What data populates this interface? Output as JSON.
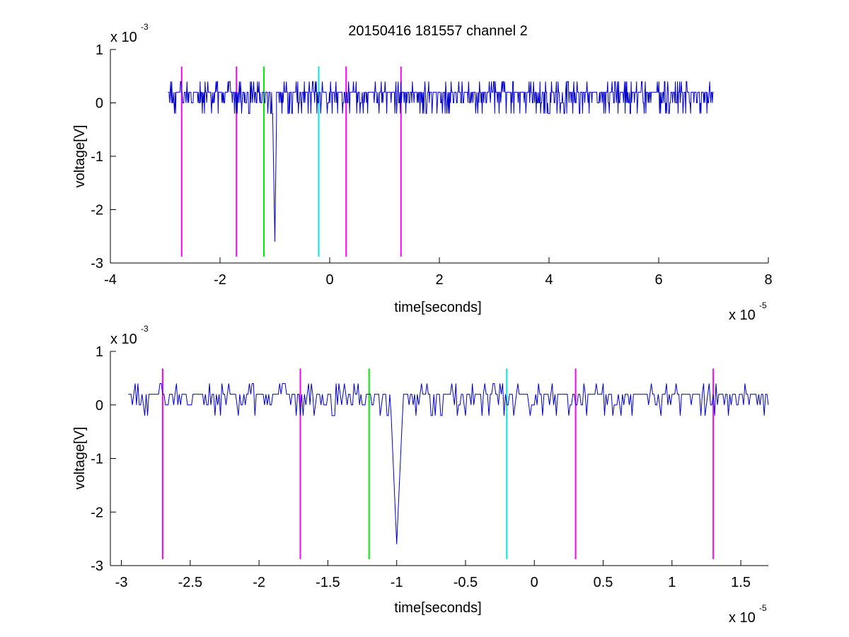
{
  "figure_title": "20150416 181557 channel 2",
  "colors": {
    "signal": "#0000cc",
    "magenta": "#ff00ff",
    "green": "#00ee00",
    "cyan": "#00e5e5"
  },
  "chart_data": [
    {
      "type": "line",
      "title": "20150416 181557 channel 2",
      "xlabel": "time[seconds]",
      "ylabel": "voltage[V]",
      "x_exponent": "x 10",
      "x_exponent_power": "-5",
      "y_exponent": "x 10",
      "y_exponent_power": "-3",
      "xlim": [
        -4,
        8
      ],
      "ylim": [
        -3,
        1
      ],
      "xticks": [
        -4,
        -2,
        0,
        2,
        4,
        6,
        8
      ],
      "xtick_labels": [
        "-4",
        "-2",
        "0",
        "2",
        "4",
        "6",
        "8"
      ],
      "yticks": [
        -3,
        -2,
        -1,
        0,
        1
      ],
      "ytick_labels": [
        "-3",
        "-2",
        "-1",
        "0",
        "1"
      ],
      "grid": false,
      "series": [
        {
          "x_start": -2.95,
          "x_end": 7.0,
          "points": 1000,
          "baseline_levels": [
            0.2,
            0.0
          ],
          "noise_levels": [
            0.4,
            -0.2
          ],
          "spike": {
            "x": [
              -1.04,
              -1.0,
              -0.97
            ],
            "y": [
              -0.2,
              -2.6,
              -0.3
            ]
          }
        }
      ],
      "vertical_markers": [
        {
          "x": -2.7,
          "color": "magenta"
        },
        {
          "x": -1.7,
          "color": "magenta"
        },
        {
          "x": -1.2,
          "color": "green"
        },
        {
          "x": -0.2,
          "color": "cyan"
        },
        {
          "x": 0.3,
          "color": "magenta"
        },
        {
          "x": 1.3,
          "color": "magenta"
        }
      ],
      "marker_y_range": [
        -2.88,
        0.68
      ]
    },
    {
      "type": "line",
      "title": "",
      "xlabel": "time[seconds]",
      "ylabel": "voltage[V]",
      "x_exponent": "x 10",
      "x_exponent_power": "-5",
      "y_exponent": "x 10",
      "y_exponent_power": "-3",
      "xlim": [
        -3.08,
        1.7
      ],
      "ylim": [
        -3,
        1
      ],
      "xticks": [
        -3,
        -2.5,
        -2,
        -1.5,
        -1,
        -0.5,
        0,
        0.5,
        1,
        1.5
      ],
      "xtick_labels": [
        "-3",
        "-2.5",
        "-2",
        "-1.5",
        "-1",
        "-0.5",
        "0",
        "0.5",
        "1",
        "1.5"
      ],
      "yticks": [
        -3,
        -2,
        -1,
        0,
        1
      ],
      "ytick_labels": [
        "-3",
        "-2",
        "-1",
        "0",
        "1"
      ],
      "grid": false,
      "series": [
        {
          "x_start": -2.95,
          "x_end": 1.7,
          "points": 465,
          "baseline_levels": [
            0.2,
            0.0
          ],
          "noise_levels": [
            0.4,
            -0.2
          ],
          "spike": {
            "x": [
              -1.04,
              -1.0,
              -0.96
            ],
            "y": [
              -0.2,
              -2.6,
              -0.3
            ]
          }
        }
      ],
      "vertical_markers": [
        {
          "x": -2.7,
          "color": "magenta"
        },
        {
          "x": -1.7,
          "color": "magenta"
        },
        {
          "x": -1.2,
          "color": "green"
        },
        {
          "x": -0.2,
          "color": "cyan"
        },
        {
          "x": 0.3,
          "color": "magenta"
        },
        {
          "x": 1.3,
          "color": "magenta"
        }
      ],
      "marker_y_range": [
        -2.88,
        0.68
      ]
    }
  ]
}
